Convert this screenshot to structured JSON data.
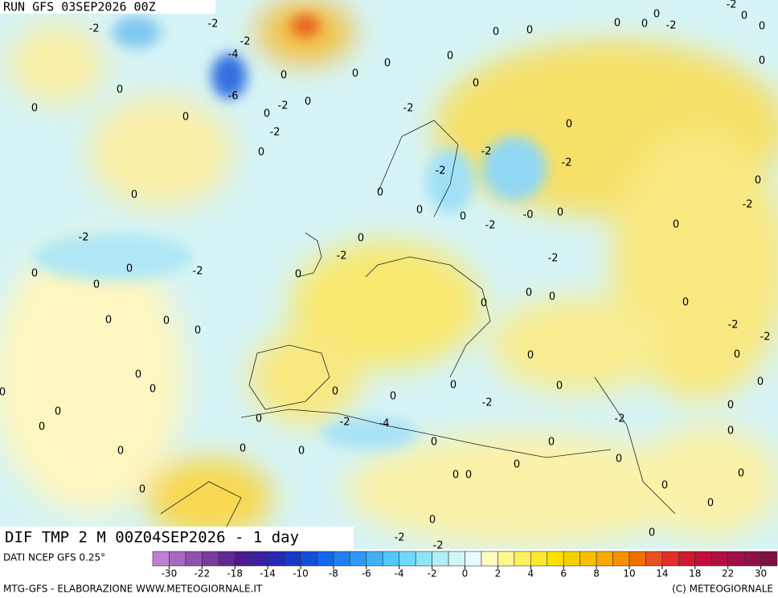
{
  "header": {
    "run": "RUN GFS 03SEP2026 00Z"
  },
  "map": {
    "field_label": "DIF TMP 2 M 00Z04SEP2026 - 1 day",
    "contour_labels": [
      "-2",
      "-2",
      "-2",
      "-4",
      "-6",
      "-2",
      "0",
      "0",
      "0",
      "-2",
      "0",
      "0",
      "0",
      "0",
      "0",
      "-2",
      "0",
      "-2",
      "0",
      "0",
      "0",
      "0",
      "0",
      "0",
      "0",
      "0",
      "0",
      "0",
      "0",
      "0",
      "0",
      "0",
      "0",
      "0",
      "0",
      "-2",
      "0",
      "0",
      "0",
      "0",
      "0",
      "-2",
      "0",
      "-2",
      "0",
      "0",
      "0",
      "0",
      "-2",
      "-2",
      "-2",
      "0",
      "0",
      "0",
      "-2",
      "-0",
      "0",
      "0",
      "-2",
      "0",
      "-2",
      "0",
      "-2",
      "0",
      "0",
      "0",
      "0",
      "0",
      "-2",
      "-2",
      "0",
      "0",
      "0",
      "0",
      "0",
      "0",
      "-2",
      "0",
      "-2",
      "-4",
      "-2",
      "0",
      "0",
      "0",
      "0",
      "0",
      "0",
      "0",
      "0",
      "0",
      "0",
      "0",
      "0",
      "0",
      "-2",
      "-2",
      "0"
    ]
  },
  "footer": {
    "source": "DATI NCEP GFS 0.25°",
    "credit": "MTG-GFS - ELABORAZIONE WWW.METEOGIORNALE.IT",
    "copyright": "(C) METEOGIORNALE"
  },
  "colorbar": {
    "labels": [
      -30,
      -22,
      -18,
      -14,
      -10,
      -8,
      -6,
      -4,
      -2,
      0,
      2,
      4,
      6,
      8,
      10,
      14,
      18,
      22,
      30
    ],
    "colors": [
      "#c080d0",
      "#a868c0",
      "#9050b0",
      "#7a3aa0",
      "#602890",
      "#4a1a90",
      "#3a20a0",
      "#2828b8",
      "#1838c8",
      "#1050d8",
      "#1068e8",
      "#2080f0",
      "#3098f8",
      "#40b0f8",
      "#50c8f8",
      "#70d8f8",
      "#90e4f8",
      "#b0eef8",
      "#d0f6fa",
      "#e8fafa",
      "#fffcc0",
      "#fff890",
      "#fff060",
      "#ffe830",
      "#ffe000",
      "#f8d000",
      "#f8c000",
      "#f8a800",
      "#f89000",
      "#f07000",
      "#e85020",
      "#e03028",
      "#d01830",
      "#c01038",
      "#b01040",
      "#a01048",
      "#901048",
      "#801040"
    ]
  }
}
